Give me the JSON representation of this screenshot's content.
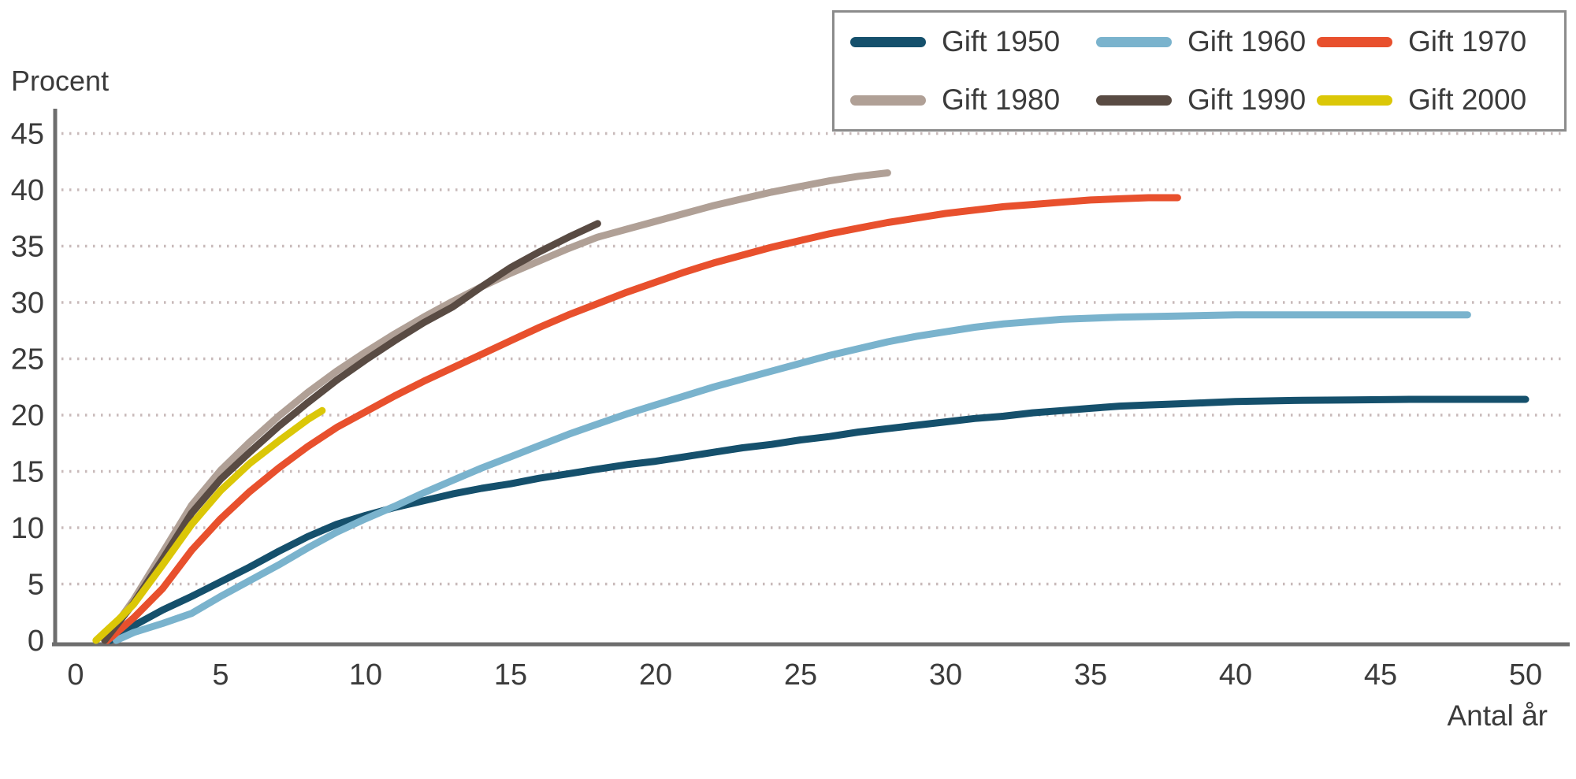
{
  "page": {
    "background_color": "#ffffff",
    "text_color": "#3b3b3b",
    "axis_line_color": "#6e6e6e",
    "gridline_color": "#c8baba",
    "legend_border_color": "#8c8c8c"
  },
  "labels": {
    "y_axis_title": "Procent",
    "x_axis_title": "Antal år"
  },
  "chart_data": {
    "type": "line",
    "title": "",
    "ylabel": "Procent",
    "xlabel": "Antal år",
    "xlim": [
      0,
      50
    ],
    "ylim": [
      0,
      45
    ],
    "xticks": [
      0,
      5,
      10,
      15,
      20,
      25,
      30,
      35,
      40,
      45,
      50
    ],
    "yticks": [
      0,
      5,
      10,
      15,
      20,
      25,
      30,
      35,
      40,
      45
    ],
    "grid": "horizontal-dotted",
    "legend_position": "top-right",
    "legend_columns": 3,
    "series": [
      {
        "name": "Gift 1950",
        "color": "#15506c",
        "points": [
          [
            1.2,
            0
          ],
          [
            2,
            1.3
          ],
          [
            3,
            2.7
          ],
          [
            4,
            3.9
          ],
          [
            5,
            5.2
          ],
          [
            6,
            6.5
          ],
          [
            7,
            7.9
          ],
          [
            8,
            9.2
          ],
          [
            9,
            10.3
          ],
          [
            10,
            11.1
          ],
          [
            11,
            11.8
          ],
          [
            12,
            12.4
          ],
          [
            13,
            13.0
          ],
          [
            14,
            13.5
          ],
          [
            15,
            13.9
          ],
          [
            16,
            14.4
          ],
          [
            17,
            14.8
          ],
          [
            18,
            15.2
          ],
          [
            19,
            15.6
          ],
          [
            20,
            15.9
          ],
          [
            21,
            16.3
          ],
          [
            22,
            16.7
          ],
          [
            23,
            17.1
          ],
          [
            24,
            17.4
          ],
          [
            25,
            17.8
          ],
          [
            26,
            18.1
          ],
          [
            27,
            18.5
          ],
          [
            28,
            18.8
          ],
          [
            29,
            19.1
          ],
          [
            30,
            19.4
          ],
          [
            31,
            19.7
          ],
          [
            32,
            19.9
          ],
          [
            33,
            20.2
          ],
          [
            34,
            20.4
          ],
          [
            35,
            20.6
          ],
          [
            36,
            20.8
          ],
          [
            37,
            20.9
          ],
          [
            38,
            21.0
          ],
          [
            39,
            21.1
          ],
          [
            40,
            21.2
          ],
          [
            42,
            21.3
          ],
          [
            44,
            21.35
          ],
          [
            46,
            21.4
          ],
          [
            48,
            21.4
          ],
          [
            50,
            21.4
          ]
        ]
      },
      {
        "name": "Gift 1960",
        "color": "#7ab3cd",
        "points": [
          [
            1.4,
            0
          ],
          [
            2,
            0.7
          ],
          [
            3,
            1.5
          ],
          [
            4,
            2.4
          ],
          [
            5,
            3.9
          ],
          [
            6,
            5.3
          ],
          [
            7,
            6.7
          ],
          [
            8,
            8.2
          ],
          [
            9,
            9.6
          ],
          [
            10,
            10.8
          ],
          [
            11,
            11.9
          ],
          [
            12,
            13.1
          ],
          [
            13,
            14.2
          ],
          [
            14,
            15.3
          ],
          [
            15,
            16.3
          ],
          [
            16,
            17.3
          ],
          [
            17,
            18.3
          ],
          [
            18,
            19.2
          ],
          [
            19,
            20.1
          ],
          [
            20,
            20.9
          ],
          [
            21,
            21.7
          ],
          [
            22,
            22.5
          ],
          [
            23,
            23.2
          ],
          [
            24,
            23.9
          ],
          [
            25,
            24.6
          ],
          [
            26,
            25.3
          ],
          [
            27,
            25.9
          ],
          [
            28,
            26.5
          ],
          [
            29,
            27.0
          ],
          [
            30,
            27.4
          ],
          [
            31,
            27.8
          ],
          [
            32,
            28.1
          ],
          [
            33,
            28.3
          ],
          [
            34,
            28.5
          ],
          [
            35,
            28.6
          ],
          [
            36,
            28.7
          ],
          [
            38,
            28.8
          ],
          [
            40,
            28.9
          ],
          [
            42,
            28.9
          ],
          [
            44,
            28.9
          ],
          [
            46,
            28.9
          ],
          [
            48,
            28.9
          ]
        ]
      },
      {
        "name": "Gift 1970",
        "color": "#e8502d",
        "points": [
          [
            1.1,
            0
          ],
          [
            2,
            2.0
          ],
          [
            3,
            4.6
          ],
          [
            4,
            8.0
          ],
          [
            5,
            10.8
          ],
          [
            6,
            13.2
          ],
          [
            7,
            15.3
          ],
          [
            8,
            17.2
          ],
          [
            9,
            18.9
          ],
          [
            10,
            20.3
          ],
          [
            11,
            21.7
          ],
          [
            12,
            23.0
          ],
          [
            13,
            24.2
          ],
          [
            14,
            25.4
          ],
          [
            15,
            26.6
          ],
          [
            16,
            27.8
          ],
          [
            17,
            28.9
          ],
          [
            18,
            29.9
          ],
          [
            19,
            30.9
          ],
          [
            20,
            31.8
          ],
          [
            21,
            32.7
          ],
          [
            22,
            33.5
          ],
          [
            23,
            34.2
          ],
          [
            24,
            34.9
          ],
          [
            25,
            35.5
          ],
          [
            26,
            36.1
          ],
          [
            27,
            36.6
          ],
          [
            28,
            37.1
          ],
          [
            29,
            37.5
          ],
          [
            30,
            37.9
          ],
          [
            31,
            38.2
          ],
          [
            32,
            38.5
          ],
          [
            33,
            38.7
          ],
          [
            34,
            38.9
          ],
          [
            35,
            39.1
          ],
          [
            36,
            39.2
          ],
          [
            37,
            39.3
          ],
          [
            38,
            39.3
          ]
        ]
      },
      {
        "name": "Gift 1980",
        "color": "#b0a096",
        "points": [
          [
            1.0,
            0
          ],
          [
            2,
            3.6
          ],
          [
            3,
            7.8
          ],
          [
            4,
            12.0
          ],
          [
            5,
            15.1
          ],
          [
            6,
            17.6
          ],
          [
            7,
            19.9
          ],
          [
            8,
            22.0
          ],
          [
            9,
            23.9
          ],
          [
            10,
            25.6
          ],
          [
            11,
            27.2
          ],
          [
            12,
            28.7
          ],
          [
            13,
            30.1
          ],
          [
            14,
            31.4
          ],
          [
            15,
            32.6
          ],
          [
            16,
            33.7
          ],
          [
            17,
            34.8
          ],
          [
            18,
            35.8
          ],
          [
            19,
            36.5
          ],
          [
            20,
            37.2
          ],
          [
            21,
            37.9
          ],
          [
            22,
            38.6
          ],
          [
            23,
            39.2
          ],
          [
            24,
            39.8
          ],
          [
            25,
            40.3
          ],
          [
            26,
            40.8
          ],
          [
            27,
            41.2
          ],
          [
            28,
            41.5
          ]
        ]
      },
      {
        "name": "Gift 1990",
        "color": "#594b43",
        "points": [
          [
            1.0,
            0
          ],
          [
            2,
            3.3
          ],
          [
            3,
            7.2
          ],
          [
            4,
            11.3
          ],
          [
            5,
            14.3
          ],
          [
            6,
            16.7
          ],
          [
            7,
            19.0
          ],
          [
            8,
            21.1
          ],
          [
            9,
            23.1
          ],
          [
            10,
            24.9
          ],
          [
            11,
            26.6
          ],
          [
            12,
            28.2
          ],
          [
            13,
            29.6
          ],
          [
            14,
            31.4
          ],
          [
            15,
            33.1
          ],
          [
            16,
            34.5
          ],
          [
            17,
            35.8
          ],
          [
            18,
            37.0
          ]
        ]
      },
      {
        "name": "Gift 2000",
        "color": "#dbc707",
        "points": [
          [
            0.7,
            0
          ],
          [
            1.5,
            1.9
          ],
          [
            2,
            3.2
          ],
          [
            3,
            6.7
          ],
          [
            4,
            10.3
          ],
          [
            5,
            13.3
          ],
          [
            6,
            15.7
          ],
          [
            7,
            17.7
          ],
          [
            8,
            19.6
          ],
          [
            8.5,
            20.4
          ]
        ]
      }
    ]
  }
}
